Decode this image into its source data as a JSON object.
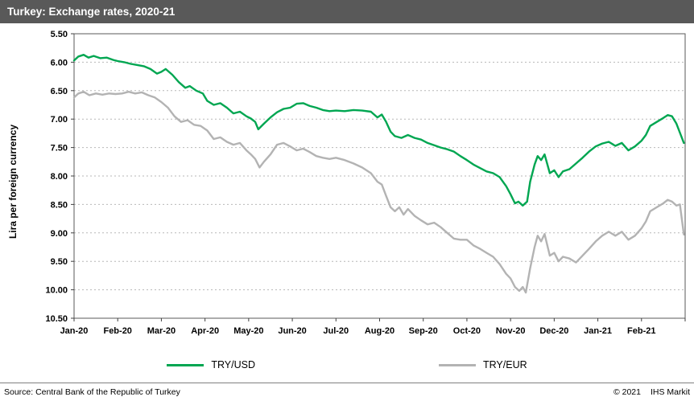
{
  "header": {
    "title": "Turkey: Exchange rates, 2020-21"
  },
  "footer": {
    "source": "Source:  Central Bank of the Republic of Turkey",
    "copyright": "© 2021",
    "brand": "IHS Markit"
  },
  "chart_data": {
    "type": "line",
    "title": "Turkey: Exchange rates, 2020-21",
    "xlabel": "",
    "ylabel": "Lira per foreign currency",
    "grid": "horizontal-dotted",
    "legend_position": "bottom",
    "colors": {
      "grid": "#b7b7b7",
      "axis": "#595959",
      "tick": "#404040"
    },
    "y_axis": {
      "min": 5.5,
      "max": 10.5,
      "inverted": true,
      "ticks": [
        {
          "value": 5.5,
          "label": "5.50"
        },
        {
          "value": 6.0,
          "label": "6.00"
        },
        {
          "value": 6.5,
          "label": "6.50"
        },
        {
          "value": 7.0,
          "label": "7.00"
        },
        {
          "value": 7.5,
          "label": "7.50"
        },
        {
          "value": 8.0,
          "label": "8.00"
        },
        {
          "value": 8.5,
          "label": "8.50"
        },
        {
          "value": 9.0,
          "label": "9.00"
        },
        {
          "value": 9.5,
          "label": "9.50"
        },
        {
          "value": 10.0,
          "label": "10.00"
        },
        {
          "value": 10.5,
          "label": "10.50"
        }
      ]
    },
    "x_axis": {
      "min": 0,
      "max": 14,
      "ticks": [
        {
          "value": 0,
          "label": "Jan-20"
        },
        {
          "value": 1,
          "label": "Feb-20"
        },
        {
          "value": 2,
          "label": "Mar-20"
        },
        {
          "value": 3,
          "label": "Apr-20"
        },
        {
          "value": 4,
          "label": "May-20"
        },
        {
          "value": 5,
          "label": "Jun-20"
        },
        {
          "value": 6,
          "label": "Jul-20"
        },
        {
          "value": 7,
          "label": "Aug-20"
        },
        {
          "value": 8,
          "label": "Sep-20"
        },
        {
          "value": 9,
          "label": "Oct-20"
        },
        {
          "value": 10,
          "label": "Nov-20"
        },
        {
          "value": 11,
          "label": "Dec-20"
        },
        {
          "value": 12,
          "label": "Jan-21"
        },
        {
          "value": 13,
          "label": "Feb-21"
        }
      ]
    },
    "series": [
      {
        "name": "TRY/USD",
        "color": "#00a651",
        "points": [
          [
            0.0,
            5.97
          ],
          [
            0.1,
            5.9
          ],
          [
            0.22,
            5.87
          ],
          [
            0.33,
            5.92
          ],
          [
            0.45,
            5.89
          ],
          [
            0.6,
            5.93
          ],
          [
            0.75,
            5.92
          ],
          [
            0.9,
            5.96
          ],
          [
            1.0,
            5.98
          ],
          [
            1.15,
            6.0
          ],
          [
            1.3,
            6.03
          ],
          [
            1.45,
            6.05
          ],
          [
            1.6,
            6.07
          ],
          [
            1.75,
            6.12
          ],
          [
            1.9,
            6.2
          ],
          [
            2.0,
            6.17
          ],
          [
            2.1,
            6.12
          ],
          [
            2.25,
            6.22
          ],
          [
            2.4,
            6.35
          ],
          [
            2.55,
            6.45
          ],
          [
            2.65,
            6.42
          ],
          [
            2.8,
            6.5
          ],
          [
            2.95,
            6.55
          ],
          [
            3.05,
            6.68
          ],
          [
            3.2,
            6.75
          ],
          [
            3.35,
            6.72
          ],
          [
            3.5,
            6.8
          ],
          [
            3.65,
            6.9
          ],
          [
            3.8,
            6.87
          ],
          [
            3.95,
            6.95
          ],
          [
            4.05,
            6.99
          ],
          [
            4.15,
            7.05
          ],
          [
            4.22,
            7.18
          ],
          [
            4.35,
            7.08
          ],
          [
            4.5,
            6.97
          ],
          [
            4.65,
            6.88
          ],
          [
            4.8,
            6.82
          ],
          [
            4.95,
            6.8
          ],
          [
            5.1,
            6.73
          ],
          [
            5.25,
            6.72
          ],
          [
            5.4,
            6.77
          ],
          [
            5.55,
            6.8
          ],
          [
            5.7,
            6.84
          ],
          [
            5.85,
            6.86
          ],
          [
            6.0,
            6.85
          ],
          [
            6.2,
            6.86
          ],
          [
            6.4,
            6.84
          ],
          [
            6.6,
            6.85
          ],
          [
            6.8,
            6.87
          ],
          [
            6.95,
            6.97
          ],
          [
            7.05,
            6.92
          ],
          [
            7.15,
            7.05
          ],
          [
            7.25,
            7.22
          ],
          [
            7.35,
            7.3
          ],
          [
            7.5,
            7.33
          ],
          [
            7.65,
            7.28
          ],
          [
            7.8,
            7.33
          ],
          [
            7.95,
            7.36
          ],
          [
            8.1,
            7.42
          ],
          [
            8.25,
            7.46
          ],
          [
            8.4,
            7.5
          ],
          [
            8.55,
            7.53
          ],
          [
            8.7,
            7.57
          ],
          [
            8.85,
            7.65
          ],
          [
            9.0,
            7.72
          ],
          [
            9.15,
            7.8
          ],
          [
            9.3,
            7.86
          ],
          [
            9.45,
            7.92
          ],
          [
            9.6,
            7.95
          ],
          [
            9.75,
            8.02
          ],
          [
            9.9,
            8.18
          ],
          [
            10.0,
            8.32
          ],
          [
            10.1,
            8.48
          ],
          [
            10.18,
            8.45
          ],
          [
            10.28,
            8.52
          ],
          [
            10.38,
            8.45
          ],
          [
            10.45,
            8.1
          ],
          [
            10.55,
            7.8
          ],
          [
            10.62,
            7.65
          ],
          [
            10.7,
            7.72
          ],
          [
            10.78,
            7.62
          ],
          [
            10.9,
            7.95
          ],
          [
            11.0,
            7.9
          ],
          [
            11.1,
            8.02
          ],
          [
            11.2,
            7.92
          ],
          [
            11.35,
            7.88
          ],
          [
            11.5,
            7.78
          ],
          [
            11.65,
            7.68
          ],
          [
            11.8,
            7.57
          ],
          [
            11.95,
            7.48
          ],
          [
            12.1,
            7.43
          ],
          [
            12.25,
            7.4
          ],
          [
            12.4,
            7.47
          ],
          [
            12.55,
            7.42
          ],
          [
            12.7,
            7.55
          ],
          [
            12.85,
            7.48
          ],
          [
            13.0,
            7.38
          ],
          [
            13.1,
            7.28
          ],
          [
            13.2,
            7.12
          ],
          [
            13.35,
            7.05
          ],
          [
            13.5,
            6.98
          ],
          [
            13.6,
            6.93
          ],
          [
            13.7,
            6.95
          ],
          [
            13.8,
            7.08
          ],
          [
            13.9,
            7.28
          ],
          [
            13.97,
            7.42
          ]
        ]
      },
      {
        "name": "TRY/EUR",
        "color": "#b3b3b3",
        "points": [
          [
            0.0,
            6.62
          ],
          [
            0.1,
            6.55
          ],
          [
            0.22,
            6.52
          ],
          [
            0.35,
            6.58
          ],
          [
            0.5,
            6.55
          ],
          [
            0.65,
            6.57
          ],
          [
            0.8,
            6.55
          ],
          [
            0.95,
            6.56
          ],
          [
            1.1,
            6.55
          ],
          [
            1.25,
            6.52
          ],
          [
            1.4,
            6.55
          ],
          [
            1.55,
            6.53
          ],
          [
            1.7,
            6.58
          ],
          [
            1.85,
            6.62
          ],
          [
            2.0,
            6.7
          ],
          [
            2.15,
            6.8
          ],
          [
            2.3,
            6.95
          ],
          [
            2.45,
            7.05
          ],
          [
            2.6,
            7.02
          ],
          [
            2.75,
            7.1
          ],
          [
            2.9,
            7.12
          ],
          [
            3.05,
            7.2
          ],
          [
            3.2,
            7.35
          ],
          [
            3.35,
            7.32
          ],
          [
            3.5,
            7.4
          ],
          [
            3.65,
            7.45
          ],
          [
            3.8,
            7.42
          ],
          [
            3.95,
            7.55
          ],
          [
            4.05,
            7.62
          ],
          [
            4.15,
            7.7
          ],
          [
            4.25,
            7.85
          ],
          [
            4.35,
            7.75
          ],
          [
            4.5,
            7.62
          ],
          [
            4.65,
            7.45
          ],
          [
            4.8,
            7.42
          ],
          [
            4.95,
            7.48
          ],
          [
            5.1,
            7.55
          ],
          [
            5.25,
            7.52
          ],
          [
            5.4,
            7.58
          ],
          [
            5.55,
            7.65
          ],
          [
            5.7,
            7.68
          ],
          [
            5.85,
            7.7
          ],
          [
            6.0,
            7.68
          ],
          [
            6.2,
            7.72
          ],
          [
            6.4,
            7.78
          ],
          [
            6.6,
            7.85
          ],
          [
            6.8,
            7.95
          ],
          [
            6.95,
            8.1
          ],
          [
            7.05,
            8.15
          ],
          [
            7.15,
            8.35
          ],
          [
            7.25,
            8.55
          ],
          [
            7.35,
            8.62
          ],
          [
            7.45,
            8.55
          ],
          [
            7.55,
            8.68
          ],
          [
            7.65,
            8.58
          ],
          [
            7.8,
            8.7
          ],
          [
            7.95,
            8.78
          ],
          [
            8.1,
            8.85
          ],
          [
            8.25,
            8.82
          ],
          [
            8.4,
            8.9
          ],
          [
            8.55,
            9.0
          ],
          [
            8.7,
            9.1
          ],
          [
            8.85,
            9.12
          ],
          [
            9.0,
            9.12
          ],
          [
            9.15,
            9.22
          ],
          [
            9.3,
            9.28
          ],
          [
            9.45,
            9.35
          ],
          [
            9.6,
            9.42
          ],
          [
            9.75,
            9.55
          ],
          [
            9.9,
            9.72
          ],
          [
            10.0,
            9.8
          ],
          [
            10.1,
            9.95
          ],
          [
            10.2,
            10.02
          ],
          [
            10.28,
            9.95
          ],
          [
            10.35,
            10.05
          ],
          [
            10.45,
            9.62
          ],
          [
            10.55,
            9.25
          ],
          [
            10.62,
            9.05
          ],
          [
            10.7,
            9.15
          ],
          [
            10.78,
            9.02
          ],
          [
            10.9,
            9.4
          ],
          [
            11.0,
            9.35
          ],
          [
            11.1,
            9.5
          ],
          [
            11.2,
            9.42
          ],
          [
            11.35,
            9.45
          ],
          [
            11.5,
            9.52
          ],
          [
            11.65,
            9.4
          ],
          [
            11.8,
            9.28
          ],
          [
            11.95,
            9.15
          ],
          [
            12.1,
            9.05
          ],
          [
            12.25,
            8.98
          ],
          [
            12.4,
            9.05
          ],
          [
            12.55,
            8.98
          ],
          [
            12.7,
            9.12
          ],
          [
            12.85,
            9.05
          ],
          [
            13.0,
            8.92
          ],
          [
            13.1,
            8.8
          ],
          [
            13.2,
            8.62
          ],
          [
            13.35,
            8.55
          ],
          [
            13.5,
            8.48
          ],
          [
            13.6,
            8.42
          ],
          [
            13.7,
            8.45
          ],
          [
            13.8,
            8.52
          ],
          [
            13.88,
            8.5
          ],
          [
            13.97,
            9.03
          ]
        ]
      }
    ]
  }
}
